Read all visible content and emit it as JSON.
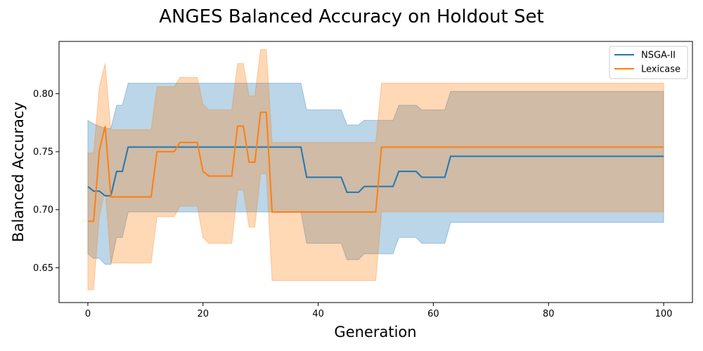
{
  "chart_data": {
    "type": "line",
    "title": "ANGES Balanced Accuracy on Holdout Set",
    "xlabel": "Generation",
    "ylabel": "Balanced Accuracy",
    "xlim": [
      -5,
      105
    ],
    "ylim": [
      0.62,
      0.845
    ],
    "xticks": [
      0,
      20,
      40,
      60,
      80,
      100
    ],
    "xtick_labels": [
      "0",
      "20",
      "40",
      "60",
      "80",
      "100"
    ],
    "yticks": [
      0.65,
      0.7,
      0.75,
      0.8
    ],
    "ytick_labels": [
      "0.65",
      "0.70",
      "0.75",
      "0.80"
    ],
    "legend_position": "top-right",
    "grid": false,
    "series": [
      {
        "name": "NSGA-II",
        "color": "#1f77b4",
        "band_color": "#1f77b4",
        "x": [
          0,
          1,
          2,
          3,
          4,
          5,
          6,
          7,
          37,
          38,
          44,
          45,
          47,
          48,
          53,
          54,
          57,
          58,
          62,
          63,
          100
        ],
        "mean": [
          0.72,
          0.716,
          0.716,
          0.712,
          0.712,
          0.733,
          0.733,
          0.754,
          0.754,
          0.728,
          0.728,
          0.715,
          0.715,
          0.72,
          0.72,
          0.733,
          0.733,
          0.728,
          0.728,
          0.746,
          0.746
        ],
        "upper": [
          0.777,
          0.774,
          0.772,
          0.77,
          0.77,
          0.79,
          0.79,
          0.809,
          0.809,
          0.786,
          0.786,
          0.773,
          0.773,
          0.777,
          0.777,
          0.79,
          0.79,
          0.786,
          0.786,
          0.802,
          0.802
        ],
        "lower": [
          0.662,
          0.658,
          0.658,
          0.653,
          0.653,
          0.676,
          0.676,
          0.698,
          0.698,
          0.671,
          0.671,
          0.657,
          0.657,
          0.662,
          0.662,
          0.676,
          0.676,
          0.671,
          0.671,
          0.689,
          0.689
        ]
      },
      {
        "name": "Lexicase",
        "color": "#ff7f0e",
        "band_color": "#ff7f0e",
        "x": [
          0,
          1,
          2,
          3,
          4,
          11,
          12,
          15,
          16,
          19,
          20,
          21,
          25,
          26,
          27,
          28,
          29,
          30,
          31,
          32,
          50,
          51,
          100
        ],
        "mean": [
          0.69,
          0.69,
          0.751,
          0.772,
          0.711,
          0.711,
          0.75,
          0.75,
          0.758,
          0.758,
          0.733,
          0.729,
          0.729,
          0.772,
          0.772,
          0.741,
          0.741,
          0.784,
          0.784,
          0.698,
          0.698,
          0.754,
          0.754
        ],
        "upper": [
          0.749,
          0.749,
          0.806,
          0.826,
          0.769,
          0.769,
          0.806,
          0.806,
          0.814,
          0.814,
          0.791,
          0.786,
          0.786,
          0.826,
          0.826,
          0.798,
          0.798,
          0.838,
          0.838,
          0.758,
          0.758,
          0.809,
          0.809
        ],
        "lower": [
          0.631,
          0.631,
          0.694,
          0.717,
          0.654,
          0.654,
          0.694,
          0.694,
          0.703,
          0.703,
          0.676,
          0.671,
          0.671,
          0.717,
          0.717,
          0.685,
          0.685,
          0.731,
          0.731,
          0.639,
          0.639,
          0.698,
          0.698
        ]
      }
    ]
  }
}
